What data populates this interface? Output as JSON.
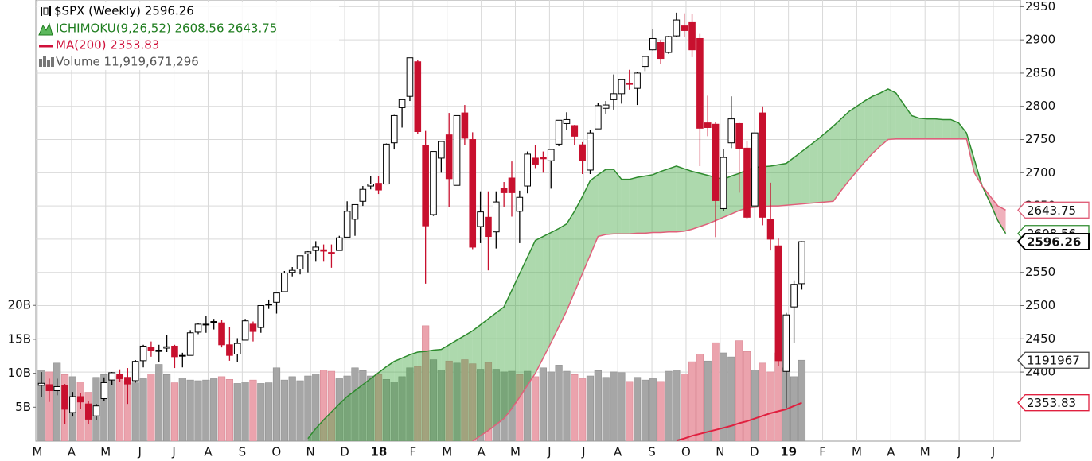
{
  "chart_data": {
    "type": "candlestick",
    "legend": [
      {
        "name": "$SPX (Weekly) 2596.26",
        "color": "#000000"
      },
      {
        "name": "ICHIMOKU(9,26,52) 2608.56 2643.75",
        "color": "#1e7d1e"
      },
      {
        "name": "MA(200) 2353.83",
        "color": "#d0103a"
      },
      {
        "name": "Volume 11,919,671,296",
        "color": "#555555"
      }
    ],
    "x_labels": [
      "M",
      "A",
      "M",
      "J",
      "J",
      "A",
      "S",
      "O",
      "N",
      "D",
      "18",
      "F",
      "M",
      "A",
      "M",
      "J",
      "J",
      "A",
      "S",
      "O",
      "N",
      "D",
      "19",
      "F",
      "M",
      "A",
      "M",
      "J",
      "J"
    ],
    "ylim": [
      2296,
      2960
    ],
    "yticks": [
      2400,
      2450,
      2500,
      2550,
      2600,
      2650,
      2700,
      2750,
      2800,
      2850,
      2900,
      2950
    ],
    "grid": true,
    "up_color": "#ffffff",
    "down_color": "#c8102e",
    "candles": [
      [
        2380,
        2400,
        2362,
        2383
      ],
      [
        2381,
        2390,
        2355,
        2372
      ],
      [
        2372,
        2390,
        2365,
        2378
      ],
      [
        2380,
        2382,
        2322,
        2344
      ],
      [
        2339,
        2370,
        2333,
        2363
      ],
      [
        2363,
        2368,
        2344,
        2355
      ],
      [
        2352,
        2356,
        2322,
        2329
      ],
      [
        2334,
        2352,
        2328,
        2349
      ],
      [
        2360,
        2392,
        2357,
        2384
      ],
      [
        2388,
        2400,
        2380,
        2399
      ],
      [
        2397,
        2404,
        2385,
        2390
      ],
      [
        2392,
        2406,
        2352,
        2382
      ],
      [
        2387,
        2418,
        2384,
        2416
      ],
      [
        2417,
        2441,
        2407,
        2439
      ],
      [
        2437,
        2446,
        2423,
        2432
      ],
      [
        2431,
        2441,
        2415,
        2433
      ],
      [
        2436,
        2456,
        2430,
        2438
      ],
      [
        2439,
        2441,
        2406,
        2423
      ],
      [
        2424,
        2429,
        2407,
        2425
      ],
      [
        2425,
        2463,
        2425,
        2459
      ],
      [
        2460,
        2474,
        2457,
        2472
      ],
      [
        2471,
        2484,
        2459,
        2472
      ],
      [
        2476,
        2480,
        2464,
        2476
      ],
      [
        2474,
        2478,
        2437,
        2441
      ],
      [
        2441,
        2468,
        2417,
        2425
      ],
      [
        2427,
        2451,
        2415,
        2443
      ],
      [
        2448,
        2480,
        2448,
        2477
      ],
      [
        2472,
        2476,
        2446,
        2461
      ],
      [
        2467,
        2500,
        2459,
        2500
      ],
      [
        2501,
        2509,
        2495,
        2502
      ],
      [
        2505,
        2519,
        2488,
        2519
      ],
      [
        2521,
        2552,
        2520,
        2549
      ],
      [
        2550,
        2558,
        2544,
        2553
      ],
      [
        2555,
        2575,
        2547,
        2575
      ],
      [
        2578,
        2582,
        2550,
        2581
      ],
      [
        2583,
        2597,
        2566,
        2588
      ],
      [
        2584,
        2592,
        2566,
        2582
      ],
      [
        2580,
        2592,
        2557,
        2579
      ],
      [
        2583,
        2605,
        2583,
        2602
      ],
      [
        2603,
        2657,
        2603,
        2642
      ],
      [
        2630,
        2651,
        2605,
        2652
      ],
      [
        2657,
        2680,
        2650,
        2675
      ],
      [
        2680,
        2695,
        2675,
        2683
      ],
      [
        2684,
        2695,
        2668,
        2674
      ],
      [
        2683,
        2744,
        2683,
        2743
      ],
      [
        2745,
        2787,
        2735,
        2786
      ],
      [
        2798,
        2810,
        2768,
        2810
      ],
      [
        2815,
        2873,
        2808,
        2873
      ],
      [
        2867,
        2870,
        2759,
        2762
      ],
      [
        2741,
        2763,
        2533,
        2620
      ],
      [
        2637,
        2732,
        2635,
        2732
      ],
      [
        2722,
        2747,
        2700,
        2747
      ],
      [
        2757,
        2790,
        2648,
        2691
      ],
      [
        2681,
        2786,
        2681,
        2786
      ],
      [
        2790,
        2802,
        2742,
        2752
      ],
      [
        2750,
        2761,
        2585,
        2588
      ],
      [
        2619,
        2672,
        2594,
        2641
      ],
      [
        2633,
        2672,
        2553,
        2604
      ],
      [
        2611,
        2672,
        2586,
        2656
      ],
      [
        2676,
        2686,
        2649,
        2670
      ],
      [
        2692,
        2717,
        2634,
        2670
      ],
      [
        2642,
        2673,
        2594,
        2663
      ],
      [
        2680,
        2732,
        2669,
        2728
      ],
      [
        2722,
        2742,
        2707,
        2713
      ],
      [
        2723,
        2732,
        2700,
        2721
      ],
      [
        2718,
        2736,
        2676,
        2735
      ],
      [
        2743,
        2779,
        2740,
        2779
      ],
      [
        2774,
        2791,
        2765,
        2780
      ],
      [
        2771,
        2772,
        2742,
        2755
      ],
      [
        2742,
        2746,
        2698,
        2718
      ],
      [
        2704,
        2764,
        2698,
        2760
      ],
      [
        2766,
        2805,
        2766,
        2801
      ],
      [
        2797,
        2808,
        2789,
        2802
      ],
      [
        2810,
        2848,
        2795,
        2819
      ],
      [
        2819,
        2841,
        2804,
        2840
      ],
      [
        2835,
        2855,
        2825,
        2833
      ],
      [
        2827,
        2852,
        2802,
        2850
      ],
      [
        2860,
        2876,
        2853,
        2875
      ],
      [
        2885,
        2916,
        2884,
        2902
      ],
      [
        2896,
        2900,
        2864,
        2872
      ],
      [
        2881,
        2906,
        2879,
        2905
      ],
      [
        2906,
        2941,
        2904,
        2930
      ],
      [
        2921,
        2940,
        2904,
        2914
      ],
      [
        2926,
        2939,
        2874,
        2885
      ],
      [
        2902,
        2909,
        2710,
        2767
      ],
      [
        2775,
        2816,
        2755,
        2768
      ],
      [
        2773,
        2776,
        2603,
        2658
      ],
      [
        2646,
        2736,
        2643,
        2723
      ],
      [
        2745,
        2815,
        2737,
        2781
      ],
      [
        2774,
        2775,
        2670,
        2736
      ],
      [
        2737,
        2747,
        2631,
        2633
      ],
      [
        2650,
        2760,
        2650,
        2760
      ],
      [
        2790,
        2800,
        2621,
        2633
      ],
      [
        2630,
        2685,
        2583,
        2600
      ],
      [
        2590,
        2601,
        2409,
        2417
      ],
      [
        2401,
        2489,
        2346,
        2486
      ],
      [
        2498,
        2538,
        2444,
        2532
      ],
      [
        2533,
        2597,
        2524,
        2596.26
      ]
    ],
    "volume": {
      "ylim": [
        0,
        65
      ],
      "yticks": [
        {
          "value": 5,
          "label": "5B"
        },
        {
          "value": 10,
          "label": "10B"
        },
        {
          "value": 15,
          "label": "15B"
        },
        {
          "value": 20,
          "label": "20B"
        }
      ],
      "up_color": "#a6a6a6",
      "down_color": "#eba3ad",
      "values": [
        10.5,
        10.2,
        11.5,
        9.8,
        9.5,
        8.7,
        7.2,
        9.4,
        9.8,
        10.1,
        9.6,
        8.9,
        8.6,
        9.2,
        9.9,
        11.3,
        9.8,
        8.6,
        9.3,
        9.0,
        8.9,
        9.0,
        9.2,
        9.5,
        9.1,
        8.5,
        8.7,
        9.0,
        8.5,
        8.6,
        10.8,
        9.0,
        9.5,
        8.9,
        9.6,
        9.9,
        10.5,
        10.3,
        9.2,
        9.6,
        10.8,
        10.4,
        9.6,
        9.8,
        9.1,
        8.7,
        9.5,
        10.8,
        11.0,
        17.0,
        12.0,
        10.5,
        11.8,
        11.5,
        12.0,
        11.4,
        10.6,
        11.6,
        10.6,
        10.2,
        10.3,
        9.8,
        10.3,
        9.5,
        10.8,
        10.2,
        11.2,
        10.3,
        9.8,
        9.2,
        9.6,
        10.4,
        9.4,
        10.2,
        10.1,
        8.8,
        9.4,
        9.0,
        9.2,
        8.8,
        10.3,
        10.5,
        9.9,
        11.7,
        12.8,
        11.8,
        14.5,
        13.0,
        12.4,
        14.8,
        13.2,
        10.5,
        11.5,
        10.2,
        13.0,
        10.8,
        9.5,
        11.92
      ],
      "badge": "1191967"
    },
    "ichimoku": {
      "line_a_color": "#2e8b2e",
      "line_b_color": "#e0607a",
      "fill_up": "rgba(60,165,60,0.42)",
      "fill_down": "rgba(220,70,95,0.42)",
      "span_a": [
        null,
        null,
        null,
        null,
        null,
        null,
        null,
        null,
        null,
        null,
        null,
        null,
        null,
        null,
        null,
        null,
        null,
        null,
        null,
        null,
        null,
        null,
        null,
        null,
        null,
        null,
        null,
        null,
        null,
        null,
        null,
        null,
        null,
        null,
        2300,
        2315,
        2328,
        2340,
        2352,
        2363,
        2372,
        2381,
        2390,
        2399,
        2408,
        2416,
        2421,
        2426,
        2430,
        2431,
        2433,
        2434,
        2441,
        2448,
        2455,
        2462,
        2471,
        2480,
        2489,
        2498,
        2523,
        2548,
        2573,
        2598,
        2604,
        2610,
        2616,
        2623,
        2642,
        2664,
        2688,
        2697,
        2705,
        2705,
        2690,
        2690,
        2693,
        2695,
        2697,
        2702,
        2706,
        2710,
        2706,
        2702,
        2699,
        2696,
        2693,
        2690,
        2695,
        2699,
        2704,
        2708,
        2709,
        2710,
        2712,
        2714,
        2723,
        2732,
        2741,
        2750,
        2760,
        2770,
        2781,
        2792,
        2800,
        2808,
        2815,
        2820,
        2826,
        2820,
        2803,
        2786,
        2782,
        2781,
        2781,
        2780,
        2780,
        2775,
        2760,
        2720,
        2680,
        2655,
        2628,
        2608.56
      ],
      "span_b": [
        null,
        null,
        null,
        null,
        null,
        null,
        null,
        null,
        null,
        null,
        null,
        null,
        null,
        null,
        null,
        null,
        null,
        null,
        null,
        null,
        null,
        null,
        null,
        null,
        null,
        null,
        null,
        null,
        null,
        null,
        null,
        null,
        null,
        null,
        null,
        null,
        null,
        null,
        null,
        null,
        null,
        null,
        null,
        null,
        null,
        null,
        null,
        null,
        null,
        null,
        null,
        null,
        null,
        null,
        null,
        2296,
        2304,
        2312,
        2321,
        2330,
        2345,
        2362,
        2380,
        2398,
        2421,
        2444,
        2468,
        2492,
        2520,
        2548,
        2576,
        2604,
        2607,
        2608,
        2608,
        2608,
        2609,
        2609,
        2610,
        2610,
        2611,
        2611,
        2612,
        2615,
        2619,
        2623,
        2628,
        2633,
        2638,
        2643,
        2647,
        2648,
        2649,
        2650,
        2650,
        2651,
        2652,
        2653,
        2654,
        2655,
        2656,
        2657,
        2673,
        2688,
        2702,
        2716,
        2729,
        2740,
        2750,
        2751,
        2751,
        2751,
        2751,
        2751,
        2751,
        2751,
        2751,
        2751,
        2751,
        2700,
        2680,
        2665,
        2650,
        2643.75
      ]
    },
    "ma": {
      "color": "#e0203f",
      "values": [
        null,
        null,
        null,
        null,
        null,
        null,
        null,
        null,
        null,
        null,
        null,
        null,
        null,
        null,
        null,
        null,
        null,
        null,
        null,
        null,
        null,
        null,
        null,
        null,
        null,
        null,
        null,
        null,
        null,
        null,
        null,
        null,
        null,
        null,
        null,
        null,
        null,
        null,
        null,
        null,
        null,
        null,
        null,
        null,
        null,
        null,
        null,
        null,
        null,
        null,
        null,
        null,
        null,
        null,
        null,
        null,
        null,
        null,
        null,
        null,
        null,
        null,
        null,
        null,
        null,
        null,
        null,
        null,
        null,
        null,
        null,
        null,
        null,
        null,
        null,
        null,
        null,
        null,
        null,
        null,
        null,
        2297,
        2300,
        2304,
        2307,
        2310,
        2313,
        2316,
        2319,
        2323,
        2326,
        2330,
        2334,
        2338,
        2341,
        2344,
        2349,
        2353.83
      ]
    }
  }
}
